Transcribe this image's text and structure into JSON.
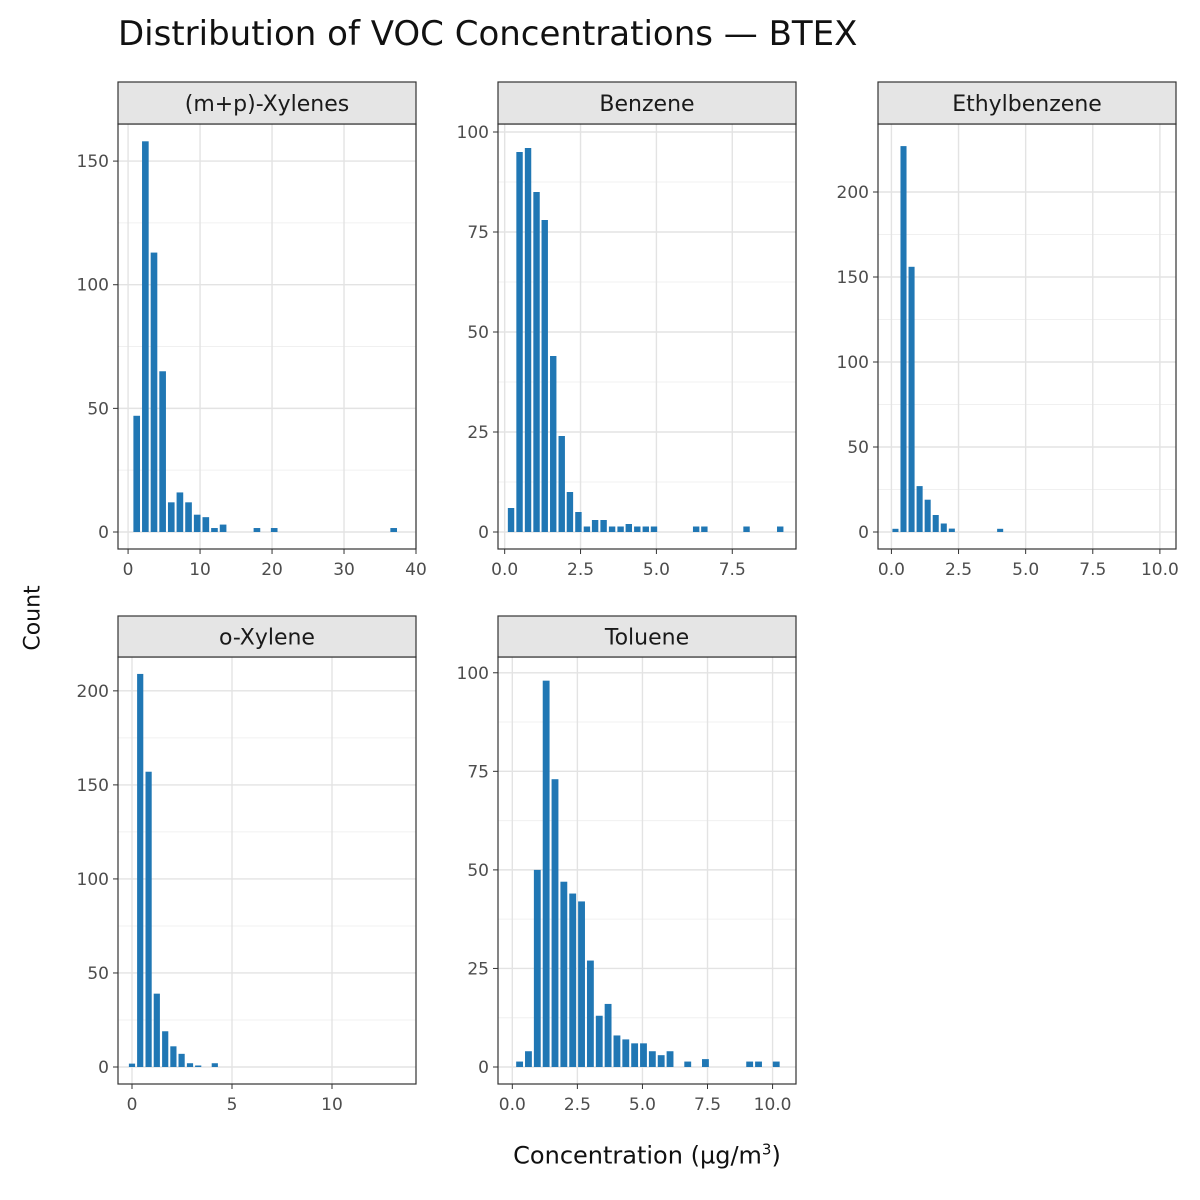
{
  "title": "Distribution of VOC Concentrations — BTEX",
  "xlabel": {
    "prefix": "Concentration (µg/m",
    "superscript": "3",
    "suffix": ")"
  },
  "ylabel": "Count",
  "colors": {
    "bar": "#2077b4",
    "strip": "#e5e5e5",
    "grid": "#e3e3e3",
    "frame": "#333333",
    "tick_text": "#4d4d4d"
  },
  "chart_data": [
    {
      "type": "bar",
      "panel": "(m+p)-Xylenes",
      "xlim": [
        -1.4,
        40
      ],
      "ylim": [
        0,
        165
      ],
      "xticks": [
        0,
        10,
        20,
        30,
        40
      ],
      "xtick_labels": [
        "0",
        "10",
        "20",
        "30",
        "40"
      ],
      "yticks": [
        0,
        50,
        100,
        150
      ],
      "ytick_labels": [
        "0",
        "50",
        "100",
        "150"
      ],
      "bin_width": 1.2,
      "x": [
        1.2,
        2.4,
        3.6,
        4.8,
        6.0,
        7.2,
        8.4,
        9.6,
        10.8,
        12.0,
        13.2,
        17.9,
        20.3,
        36.9
      ],
      "values": [
        47,
        158,
        113,
        65,
        12,
        16,
        12,
        7,
        6,
        1,
        3,
        1,
        1,
        1
      ]
    },
    {
      "type": "bar",
      "panel": "Benzene",
      "xlim": [
        -0.22,
        9.6
      ],
      "ylim": [
        0,
        102
      ],
      "xticks": [
        0,
        2.5,
        5,
        7.5
      ],
      "xtick_labels": [
        "0.0",
        "2.5",
        "5.0",
        "7.5"
      ],
      "yticks": [
        0,
        25,
        50,
        75,
        100
      ],
      "ytick_labels": [
        "0",
        "25",
        "50",
        "75",
        "100"
      ],
      "bin_width": 0.277,
      "x": [
        0.21,
        0.49,
        0.77,
        1.05,
        1.32,
        1.6,
        1.88,
        2.15,
        2.43,
        2.71,
        2.98,
        3.26,
        3.54,
        3.82,
        4.09,
        4.37,
        4.65,
        4.92,
        6.31,
        6.58,
        7.97,
        9.08
      ],
      "values": [
        6,
        95,
        96,
        85,
        78,
        44,
        24,
        10,
        5,
        1,
        3,
        3,
        1,
        1,
        2,
        1,
        1,
        1,
        1,
        1,
        1,
        1
      ]
    },
    {
      "type": "bar",
      "panel": "Ethylbenzene",
      "xlim": [
        -0.5,
        10.6
      ],
      "ylim": [
        0,
        240
      ],
      "xticks": [
        0,
        2.5,
        5,
        7.5,
        10
      ],
      "xtick_labels": [
        "0.0",
        "2.5",
        "5.0",
        "7.5",
        "10.0"
      ],
      "yticks": [
        0,
        50,
        100,
        150,
        200
      ],
      "ytick_labels": [
        "0",
        "50",
        "100",
        "150",
        "200"
      ],
      "bin_width": 0.3,
      "x": [
        0.15,
        0.45,
        0.75,
        1.05,
        1.35,
        1.65,
        1.95,
        2.25,
        4.05
      ],
      "values": [
        1,
        227,
        156,
        27,
        19,
        10,
        5,
        2,
        1
      ]
    },
    {
      "type": "bar",
      "panel": "o-Xylene",
      "xlim": [
        -0.7,
        14.2
      ],
      "ylim": [
        0,
        218
      ],
      "xticks": [
        0,
        5,
        10
      ],
      "xtick_labels": [
        "0",
        "5",
        "10"
      ],
      "yticks": [
        0,
        50,
        100,
        150,
        200
      ],
      "ytick_labels": [
        "0",
        "50",
        "100",
        "150",
        "200"
      ],
      "bin_width": 0.41,
      "x": [
        0.0,
        0.41,
        0.83,
        1.24,
        1.66,
        2.07,
        2.48,
        2.9,
        3.31,
        4.14
      ],
      "values": [
        1,
        209,
        157,
        39,
        19,
        11,
        7,
        2,
        0,
        2
      ]
    },
    {
      "type": "bar",
      "panel": "Toluene",
      "xlim": [
        -0.55,
        10.9
      ],
      "ylim": [
        0,
        104
      ],
      "xticks": [
        0,
        2.5,
        5,
        7.5,
        10
      ],
      "xtick_labels": [
        "0.0",
        "2.5",
        "5.0",
        "7.5",
        "10.0"
      ],
      "yticks": [
        0,
        25,
        50,
        75,
        100
      ],
      "ytick_labels": [
        "0",
        "25",
        "50",
        "75",
        "100"
      ],
      "bin_width": 0.34,
      "x": [
        0.28,
        0.62,
        0.96,
        1.3,
        1.64,
        1.98,
        2.32,
        2.66,
        3.0,
        3.34,
        3.68,
        4.02,
        4.36,
        4.7,
        5.04,
        5.38,
        5.72,
        6.06,
        6.74,
        7.42,
        9.12,
        9.46,
        10.14
      ],
      "values": [
        1,
        4,
        50,
        98,
        73,
        47,
        44,
        42,
        27,
        13,
        16,
        8,
        7,
        6,
        6,
        4,
        3,
        4,
        1,
        2,
        1,
        1,
        1
      ]
    }
  ]
}
